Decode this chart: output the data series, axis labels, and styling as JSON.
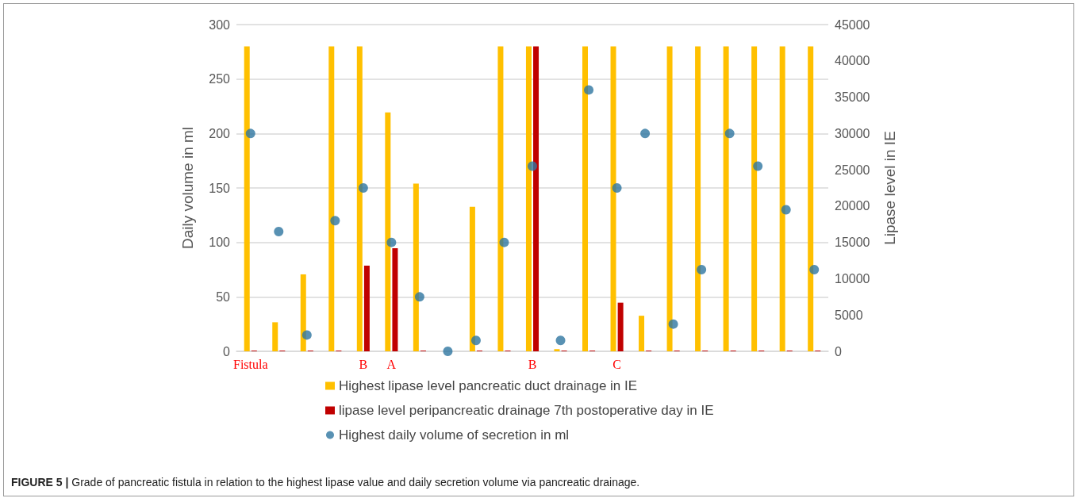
{
  "chart_data": {
    "type": "bar",
    "categories": [
      "Fistula",
      null,
      null,
      null,
      "B",
      "A",
      null,
      null,
      null,
      null,
      "B",
      null,
      null,
      "C",
      null,
      null,
      null,
      null,
      null,
      null,
      null
    ],
    "series": [
      {
        "name": "Highest lipase level pancreatic duct drainage in IE",
        "color": "#ffc000",
        "axis": "y2",
        "values": [
          42000,
          4000,
          10600,
          42000,
          42000,
          32900,
          23100,
          0,
          19900,
          42000,
          42000,
          300,
          42000,
          42000,
          4900,
          42000,
          42000,
          42000,
          42000,
          42000,
          42000
        ]
      },
      {
        "name": "lipase level peripancreatic drainage 7th postoperative day in IE",
        "color": "#c00000",
        "axis": "y2",
        "values": [
          100,
          100,
          100,
          100,
          11800,
          14200,
          100,
          null,
          100,
          100,
          42000,
          100,
          100,
          6700,
          100,
          100,
          100,
          100,
          100,
          100,
          100
        ]
      },
      {
        "name": "Highest daily volume of secretion in ml",
        "color": "#2e75a0",
        "type": "scatter",
        "marker": "circle",
        "values": [
          200,
          110,
          15,
          120,
          150,
          100,
          50,
          0,
          10,
          100,
          170,
          10,
          240,
          150,
          200,
          25,
          75,
          200,
          170,
          130,
          75
        ]
      }
    ],
    "ylabel": "Daily volume in ml",
    "y2label": "Lipase level in IE",
    "ylim": [
      0,
      300
    ],
    "yticks": [
      0,
      50,
      100,
      150,
      200,
      250,
      300
    ],
    "y2lim": [
      0,
      45000
    ],
    "y2ticks": [
      0,
      5000,
      10000,
      15000,
      20000,
      25000,
      30000,
      35000,
      40000,
      45000
    ],
    "grid": "y",
    "legend": "bottom",
    "annotations": [
      "FIGURE 5 | Grade of pancreatic fistula in relation to the highest lipase value and daily secretion volume via pancreatic drainage."
    ]
  }
}
